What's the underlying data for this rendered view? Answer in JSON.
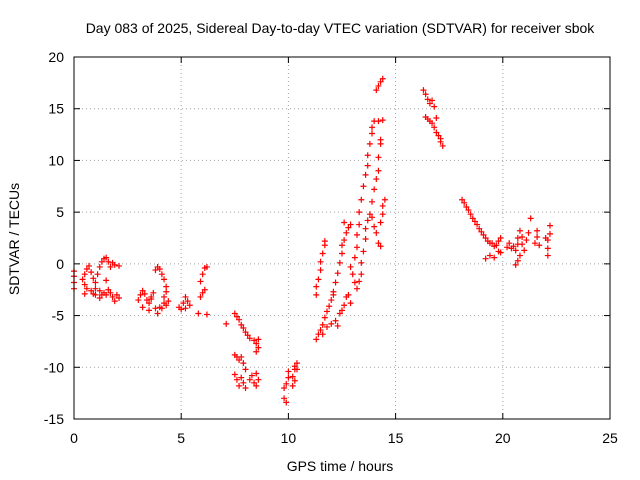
{
  "chart_data": {
    "type": "scatter",
    "title": "Day 083 of 2025, Sidereal Day-to-day VTEC variation (SDTVAR) for receiver sbok",
    "xlabel": "GPS time / hours",
    "ylabel": "SDTVAR / TECUs",
    "xlim": [
      0,
      25
    ],
    "ylim": [
      -15,
      20
    ],
    "xticks": [
      0,
      5,
      10,
      15,
      20,
      25
    ],
    "yticks": [
      -15,
      -10,
      -5,
      0,
      5,
      10,
      15,
      20
    ],
    "grid": true,
    "marker": "+",
    "color": "#ff0000",
    "series": [
      {
        "name": "SDTVAR",
        "points": [
          [
            0.0,
            -0.7
          ],
          [
            0.0,
            -1.2
          ],
          [
            0.0,
            -1.8
          ],
          [
            0.0,
            -2.4
          ],
          [
            0.4,
            -1.5
          ],
          [
            0.5,
            -1.0
          ],
          [
            0.6,
            -0.5
          ],
          [
            0.7,
            -0.2
          ],
          [
            0.8,
            -0.8
          ],
          [
            0.9,
            -1.4
          ],
          [
            1.0,
            -1.8
          ],
          [
            1.1,
            -1.0
          ],
          [
            1.2,
            -0.3
          ],
          [
            1.3,
            0.2
          ],
          [
            1.4,
            0.5
          ],
          [
            1.5,
            0.6
          ],
          [
            1.6,
            0.2
          ],
          [
            1.7,
            -0.3
          ],
          [
            1.8,
            0.1
          ],
          [
            1.9,
            -0.1
          ],
          [
            2.1,
            -0.2
          ],
          [
            0.5,
            -2.0
          ],
          [
            0.6,
            -2.4
          ],
          [
            0.8,
            -2.6
          ],
          [
            1.0,
            -2.4
          ],
          [
            1.2,
            -2.6
          ],
          [
            1.3,
            -3.0
          ],
          [
            1.4,
            -2.8
          ],
          [
            1.5,
            -3.0
          ],
          [
            1.6,
            -2.5
          ],
          [
            1.7,
            -2.8
          ],
          [
            1.8,
            -3.2
          ],
          [
            2.0,
            -3.0
          ],
          [
            2.1,
            -3.3
          ],
          [
            1.9,
            -3.6
          ],
          [
            1.2,
            -3.3
          ],
          [
            0.9,
            -2.9
          ],
          [
            0.5,
            -2.9
          ],
          [
            1.5,
            -1.6
          ],
          [
            1.0,
            -3.0
          ],
          [
            3.0,
            -3.5
          ],
          [
            3.1,
            -3.0
          ],
          [
            3.2,
            -2.6
          ],
          [
            3.3,
            -2.9
          ],
          [
            3.4,
            -3.5
          ],
          [
            3.5,
            -3.8
          ],
          [
            3.6,
            -3.4
          ],
          [
            3.7,
            -2.8
          ],
          [
            3.5,
            -4.5
          ],
          [
            3.6,
            -3.2
          ],
          [
            3.2,
            -4.2
          ],
          [
            3.8,
            -4.3
          ],
          [
            3.9,
            -4.8
          ],
          [
            4.0,
            -4.2
          ],
          [
            4.1,
            -4.3
          ],
          [
            4.3,
            -4.0
          ],
          [
            4.4,
            -3.6
          ],
          [
            4.2,
            -3.8
          ],
          [
            3.8,
            -0.6
          ],
          [
            3.9,
            -0.3
          ],
          [
            4.0,
            -0.5
          ],
          [
            4.1,
            -1.0
          ],
          [
            4.2,
            -1.5
          ],
          [
            4.3,
            -2.2
          ],
          [
            4.3,
            -2.7
          ],
          [
            4.2,
            -3.2
          ],
          [
            4.9,
            -4.2
          ],
          [
            5.0,
            -4.4
          ],
          [
            5.1,
            -3.8
          ],
          [
            5.2,
            -3.2
          ],
          [
            5.3,
            -3.6
          ],
          [
            5.4,
            -4.0
          ],
          [
            5.2,
            -4.3
          ],
          [
            5.8,
            -4.8
          ],
          [
            5.9,
            -3.2
          ],
          [
            6.0,
            -2.8
          ],
          [
            6.1,
            -2.5
          ],
          [
            5.9,
            -1.7
          ],
          [
            6.0,
            -1.0
          ],
          [
            6.1,
            -0.4
          ],
          [
            6.2,
            -0.3
          ],
          [
            6.2,
            -4.9
          ],
          [
            7.1,
            -5.8
          ],
          [
            7.5,
            -4.8
          ],
          [
            7.6,
            -5.1
          ],
          [
            7.7,
            -5.4
          ],
          [
            7.8,
            -5.9
          ],
          [
            7.9,
            -6.2
          ],
          [
            8.0,
            -6.6
          ],
          [
            8.1,
            -6.9
          ],
          [
            8.2,
            -7.2
          ],
          [
            8.4,
            -7.4
          ],
          [
            8.5,
            -7.7
          ],
          [
            8.6,
            -7.3
          ],
          [
            8.6,
            -8.1
          ],
          [
            8.5,
            -8.5
          ],
          [
            7.5,
            -8.8
          ],
          [
            7.6,
            -9.0
          ],
          [
            7.7,
            -9.3
          ],
          [
            7.8,
            -9.0
          ],
          [
            7.9,
            -9.6
          ],
          [
            8.0,
            -10.2
          ],
          [
            7.5,
            -10.7
          ],
          [
            7.6,
            -11.2
          ],
          [
            7.7,
            -11.8
          ],
          [
            7.8,
            -11.0
          ],
          [
            7.9,
            -11.5
          ],
          [
            8.0,
            -12.0
          ],
          [
            8.2,
            -11.2
          ],
          [
            8.3,
            -10.8
          ],
          [
            8.4,
            -11.5
          ],
          [
            8.5,
            -11.8
          ],
          [
            8.6,
            -11.2
          ],
          [
            8.5,
            -10.6
          ],
          [
            9.8,
            -13.0
          ],
          [
            9.9,
            -13.4
          ],
          [
            9.8,
            -12.0
          ],
          [
            9.9,
            -11.6
          ],
          [
            10.0,
            -11.0
          ],
          [
            10.0,
            -10.4
          ],
          [
            10.2,
            -10.9
          ],
          [
            10.2,
            -11.8
          ],
          [
            10.3,
            -10.2
          ],
          [
            10.3,
            -9.9
          ],
          [
            10.4,
            -10.2
          ],
          [
            10.4,
            -9.6
          ],
          [
            10.3,
            -11.3
          ],
          [
            11.3,
            -7.3
          ],
          [
            11.4,
            -6.8
          ],
          [
            11.5,
            -6.4
          ],
          [
            11.6,
            -5.9
          ],
          [
            11.7,
            -5.2
          ],
          [
            11.8,
            -4.6
          ],
          [
            11.9,
            -4.1
          ],
          [
            12.0,
            -3.5
          ],
          [
            12.1,
            -3.0
          ],
          [
            12.2,
            -5.5
          ],
          [
            12.3,
            -6.0
          ],
          [
            12.4,
            -4.8
          ],
          [
            12.5,
            -4.5
          ],
          [
            12.6,
            -4.0
          ],
          [
            12.7,
            -3.2
          ],
          [
            12.8,
            -3.0
          ],
          [
            12.9,
            -3.8
          ],
          [
            11.6,
            -6.8
          ],
          [
            11.8,
            -6.1
          ],
          [
            12.0,
            -5.8
          ],
          [
            11.3,
            -3.0
          ],
          [
            11.3,
            -2.2
          ],
          [
            11.4,
            -1.5
          ],
          [
            11.5,
            -0.6
          ],
          [
            11.5,
            0.2
          ],
          [
            11.6,
            1.0
          ],
          [
            11.7,
            1.8
          ],
          [
            11.7,
            2.2
          ],
          [
            12.1,
            -2.7
          ],
          [
            12.2,
            -1.8
          ],
          [
            12.3,
            -0.9
          ],
          [
            12.4,
            0.1
          ],
          [
            12.5,
            1.0
          ],
          [
            12.5,
            1.8
          ],
          [
            12.6,
            2.3
          ],
          [
            12.7,
            3.0
          ],
          [
            12.8,
            3.5
          ],
          [
            12.9,
            3.8
          ],
          [
            12.6,
            4.0
          ],
          [
            12.9,
            -0.3
          ],
          [
            13.0,
            -1.0
          ],
          [
            13.1,
            -1.8
          ],
          [
            13.1,
            0.6
          ],
          [
            13.2,
            1.6
          ],
          [
            13.2,
            2.8
          ],
          [
            13.3,
            3.8
          ],
          [
            13.3,
            5.0
          ],
          [
            13.4,
            6.2
          ],
          [
            13.5,
            7.5
          ],
          [
            13.6,
            8.6
          ],
          [
            13.7,
            9.5
          ],
          [
            13.7,
            10.5
          ],
          [
            13.8,
            11.6
          ],
          [
            13.9,
            12.6
          ],
          [
            14.0,
            13.8
          ],
          [
            13.9,
            13.2
          ],
          [
            13.2,
            -2.4
          ],
          [
            13.3,
            -1.7
          ],
          [
            13.4,
            -1.0
          ],
          [
            13.4,
            0.1
          ],
          [
            13.5,
            1.2
          ],
          [
            13.6,
            2.4
          ],
          [
            13.6,
            3.4
          ],
          [
            13.7,
            4.2
          ],
          [
            13.8,
            4.8
          ],
          [
            13.9,
            6.0
          ],
          [
            14.0,
            7.2
          ],
          [
            14.1,
            8.2
          ],
          [
            14.2,
            9.0
          ],
          [
            14.2,
            10.3
          ],
          [
            14.3,
            11.6
          ],
          [
            14.3,
            12.0
          ],
          [
            14.2,
            13.8
          ],
          [
            14.4,
            13.9
          ],
          [
            13.9,
            4.5
          ],
          [
            14.0,
            3.6
          ],
          [
            14.1,
            3.0
          ],
          [
            14.2,
            2.0
          ],
          [
            14.3,
            1.7
          ],
          [
            14.3,
            4.0
          ],
          [
            14.4,
            4.8
          ],
          [
            14.4,
            5.6
          ],
          [
            14.5,
            6.2
          ],
          [
            14.1,
            16.8
          ],
          [
            14.2,
            17.2
          ],
          [
            14.3,
            17.6
          ],
          [
            14.4,
            17.9
          ],
          [
            16.3,
            16.8
          ],
          [
            16.4,
            16.4
          ],
          [
            16.5,
            15.9
          ],
          [
            16.6,
            15.5
          ],
          [
            16.7,
            15.8
          ],
          [
            16.8,
            15.2
          ],
          [
            16.4,
            14.2
          ],
          [
            16.5,
            14.0
          ],
          [
            16.6,
            13.8
          ],
          [
            16.7,
            13.6
          ],
          [
            16.8,
            13.2
          ],
          [
            16.9,
            12.7
          ],
          [
            17.0,
            12.4
          ],
          [
            17.1,
            12.1
          ],
          [
            17.1,
            11.8
          ],
          [
            17.2,
            11.4
          ],
          [
            16.9,
            14.1
          ],
          [
            18.1,
            6.2
          ],
          [
            18.2,
            5.9
          ],
          [
            18.3,
            5.5
          ],
          [
            18.4,
            5.2
          ],
          [
            18.5,
            4.8
          ],
          [
            18.6,
            4.4
          ],
          [
            18.7,
            4.1
          ],
          [
            18.8,
            3.8
          ],
          [
            18.9,
            3.4
          ],
          [
            19.0,
            3.1
          ],
          [
            19.1,
            2.8
          ],
          [
            19.2,
            2.5
          ],
          [
            19.3,
            2.2
          ],
          [
            19.4,
            2.0
          ],
          [
            19.5,
            2.0
          ],
          [
            19.6,
            1.7
          ],
          [
            19.7,
            1.8
          ],
          [
            19.8,
            2.2
          ],
          [
            19.9,
            2.5
          ],
          [
            19.9,
            1.1
          ],
          [
            19.2,
            0.5
          ],
          [
            19.4,
            0.8
          ],
          [
            19.6,
            0.6
          ],
          [
            19.8,
            1.2
          ],
          [
            20.2,
            1.6
          ],
          [
            20.3,
            2.0
          ],
          [
            20.4,
            1.5
          ],
          [
            20.5,
            1.7
          ],
          [
            20.6,
            1.3
          ],
          [
            20.7,
            1.9
          ],
          [
            20.7,
            2.5
          ],
          [
            20.8,
            3.2
          ],
          [
            20.9,
            2.6
          ],
          [
            20.9,
            1.9
          ],
          [
            21.0,
            1.3
          ],
          [
            20.8,
            0.8
          ],
          [
            20.7,
            0.3
          ],
          [
            20.6,
            -0.1
          ],
          [
            21.1,
            2.3
          ],
          [
            21.2,
            3.0
          ],
          [
            21.3,
            4.4
          ],
          [
            21.5,
            2.0
          ],
          [
            21.6,
            2.6
          ],
          [
            21.7,
            1.8
          ],
          [
            21.6,
            3.2
          ],
          [
            22.0,
            2.5
          ],
          [
            22.1,
            2.3
          ],
          [
            22.2,
            2.9
          ],
          [
            22.2,
            3.7
          ],
          [
            22.1,
            1.5
          ],
          [
            22.1,
            0.8
          ]
        ]
      }
    ]
  }
}
